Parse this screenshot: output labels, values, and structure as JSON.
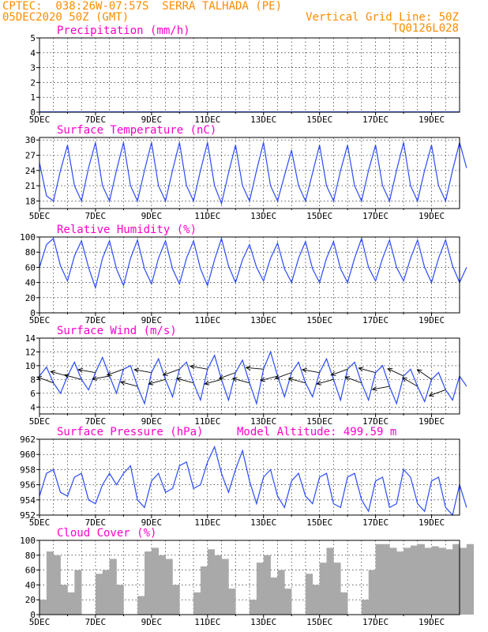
{
  "header": {
    "line1_left": "CPTEC:  038:26W-07:57S  SERRA TALHADA (PE)",
    "line2_left": "05DEC2020 50Z (GMT)",
    "line1_right": "Vertical Grid Line: 50Z",
    "line2_right": "TQ0126L028"
  },
  "colors": {
    "header": "#ff8c00",
    "title": "#ff00cc",
    "series": "#2b4bff",
    "cloud": "#a9a9a9",
    "axis": "#000000"
  },
  "chart_data": [
    {
      "id": "precipitation",
      "type": "line",
      "title": "Precipitation (mm/h)",
      "ylim": [
        0,
        5
      ],
      "yticks": [
        0,
        1,
        2,
        3,
        4,
        5
      ],
      "xticks": [
        "5DEC",
        "7DEC",
        "9DEC",
        "11DEC",
        "13DEC",
        "15DEC",
        "17DEC",
        "19DEC"
      ],
      "xlim_hours": [
        0,
        360
      ],
      "sample_step_hours": 20,
      "values": [
        0.02,
        0.02,
        0.02,
        0.02,
        0.02,
        0.02,
        0.02,
        0.02,
        0.02,
        0.02,
        0.02,
        0.02,
        0.02,
        0.02,
        0.02,
        0.02,
        0.02,
        0.02,
        0.02
      ]
    },
    {
      "id": "temperature",
      "type": "line",
      "title": "Surface Temperature (nC)",
      "ylim": [
        16.5,
        30.5
      ],
      "yticks": [
        18,
        21,
        24,
        27,
        30
      ],
      "xticks": [
        "5DEC",
        "7DEC",
        "9DEC",
        "11DEC",
        "13DEC",
        "15DEC",
        "17DEC",
        "19DEC"
      ],
      "xlim_hours": [
        0,
        360
      ],
      "sample_step_hours": 6,
      "values": [
        25.5,
        19.0,
        18.0,
        24.0,
        29.0,
        21.0,
        18.0,
        24.5,
        29.5,
        21.0,
        18.0,
        24.0,
        29.5,
        21.0,
        18.0,
        24.0,
        29.5,
        21.0,
        18.0,
        24.0,
        29.5,
        21.0,
        18.0,
        24.0,
        29.5,
        21.0,
        17.5,
        23.5,
        29.0,
        21.0,
        18.0,
        24.0,
        29.5,
        21.0,
        18.0,
        23.0,
        28.0,
        21.0,
        18.0,
        23.5,
        29.0,
        21.0,
        18.0,
        24.0,
        29.0,
        21.0,
        18.0,
        24.0,
        29.0,
        21.0,
        18.0,
        24.0,
        29.5,
        21.0,
        18.0,
        24.0,
        29.0,
        21.0,
        18.0,
        24.0,
        29.5,
        24.5
      ]
    },
    {
      "id": "humidity",
      "type": "line",
      "title": "Relative Humidity (%)",
      "ylim": [
        0,
        100
      ],
      "yticks": [
        0,
        20,
        40,
        60,
        80,
        100
      ],
      "xticks": [
        "5DEC",
        "7DEC",
        "9DEC",
        "11DEC",
        "13DEC",
        "15DEC",
        "17DEC",
        "19DEC"
      ],
      "xlim_hours": [
        0,
        360
      ],
      "sample_step_hours": 6,
      "values": [
        60,
        90,
        98,
        62,
        42,
        75,
        95,
        60,
        33,
        72,
        95,
        58,
        36,
        72,
        96,
        58,
        38,
        72,
        95,
        58,
        38,
        72,
        95,
        58,
        36,
        70,
        98,
        62,
        40,
        70,
        90,
        60,
        42,
        72,
        92,
        58,
        40,
        72,
        94,
        58,
        40,
        72,
        94,
        58,
        40,
        72,
        98,
        60,
        42,
        72,
        96,
        60,
        42,
        72,
        96,
        60,
        40,
        72,
        96,
        62,
        40,
        60
      ]
    },
    {
      "id": "wind",
      "type": "line",
      "title": "Surface Wind (m/s)",
      "ylim": [
        3,
        14
      ],
      "yticks": [
        4,
        6,
        8,
        10,
        12,
        14
      ],
      "xticks": [
        "5DEC",
        "7DEC",
        "9DEC",
        "11DEC",
        "13DEC",
        "15DEC",
        "17DEC",
        "19DEC"
      ],
      "xlim_hours": [
        0,
        360
      ],
      "sample_step_hours": 6,
      "values": [
        8.5,
        9.8,
        7.5,
        6.0,
        8.5,
        10.5,
        8.0,
        6.5,
        9.0,
        11.2,
        8.5,
        6.0,
        9.5,
        10.0,
        7.0,
        4.5,
        9.0,
        11.0,
        8.0,
        5.5,
        9.5,
        10.5,
        7.5,
        5.0,
        9.5,
        11.5,
        8.0,
        5.0,
        9.0,
        10.8,
        7.5,
        4.5,
        9.5,
        12.0,
        8.5,
        5.5,
        9.0,
        10.5,
        7.5,
        5.5,
        9.0,
        11.0,
        8.0,
        5.0,
        9.5,
        10.5,
        7.5,
        5.0,
        9.0,
        10.0,
        7.0,
        4.5,
        8.5,
        9.5,
        7.0,
        4.8,
        8.0,
        9.0,
        6.5,
        5.0,
        8.5,
        7.0
      ],
      "vector_step_hours": 12,
      "vector_directions_deg": [
        160,
        165,
        165,
        170,
        190,
        200,
        165,
        170,
        195,
        200,
        165,
        170,
        195,
        200,
        165,
        175,
        195,
        200,
        165,
        170,
        195,
        200,
        160,
        165,
        190,
        155,
        150,
        145,
        200,
        150
      ]
    },
    {
      "id": "pressure",
      "type": "line",
      "title": "Surface Pressure (hPa)",
      "subtitle": "Model Altitude: 499.59 m",
      "ylim": [
        952,
        962
      ],
      "yticks": [
        952,
        954,
        956,
        958,
        960,
        962
      ],
      "xticks": [
        "5DEC",
        "7DEC",
        "9DEC",
        "11DEC",
        "13DEC",
        "15DEC",
        "17DEC",
        "19DEC"
      ],
      "xlim_hours": [
        0,
        360
      ],
      "sample_step_hours": 6,
      "values": [
        954.5,
        957.5,
        958.0,
        955.0,
        954.5,
        957.0,
        957.5,
        954.0,
        953.5,
        956.0,
        957.5,
        956.0,
        957.5,
        958.5,
        954.0,
        953.0,
        956.5,
        957.5,
        955.0,
        955.5,
        958.5,
        959.0,
        955.5,
        956.0,
        959.0,
        961.0,
        957.5,
        955.0,
        958.0,
        960.5,
        956.5,
        953.5,
        957.0,
        958.0,
        954.5,
        953.0,
        956.5,
        957.5,
        954.5,
        953.5,
        957.0,
        957.5,
        953.5,
        953.0,
        957.0,
        957.5,
        954.0,
        952.5,
        956.5,
        957.0,
        953.0,
        953.5,
        958.0,
        957.0,
        953.5,
        952.5,
        956.5,
        957.0,
        953.0,
        952.0,
        956.0,
        953.0
      ]
    },
    {
      "id": "cloud",
      "type": "bar",
      "title": "Cloud Cover (%)",
      "ylim": [
        0,
        100
      ],
      "yticks": [
        0,
        20,
        40,
        60,
        80,
        100
      ],
      "xticks": [
        "5DEC",
        "7DEC",
        "9DEC",
        "11DEC",
        "13DEC",
        "15DEC",
        "17DEC",
        "19DEC"
      ],
      "xlim_hours": [
        0,
        360
      ],
      "sample_step_hours": 6,
      "values": [
        20,
        85,
        80,
        40,
        30,
        60,
        0,
        0,
        55,
        60,
        75,
        40,
        0,
        0,
        25,
        85,
        90,
        80,
        75,
        40,
        0,
        0,
        30,
        65,
        88,
        80,
        75,
        35,
        0,
        0,
        20,
        70,
        80,
        50,
        60,
        35,
        0,
        0,
        55,
        40,
        70,
        90,
        70,
        30,
        0,
        0,
        20,
        60,
        95,
        95,
        90,
        85,
        90,
        93,
        95,
        90,
        92,
        90,
        88,
        95,
        90,
        95
      ]
    }
  ]
}
